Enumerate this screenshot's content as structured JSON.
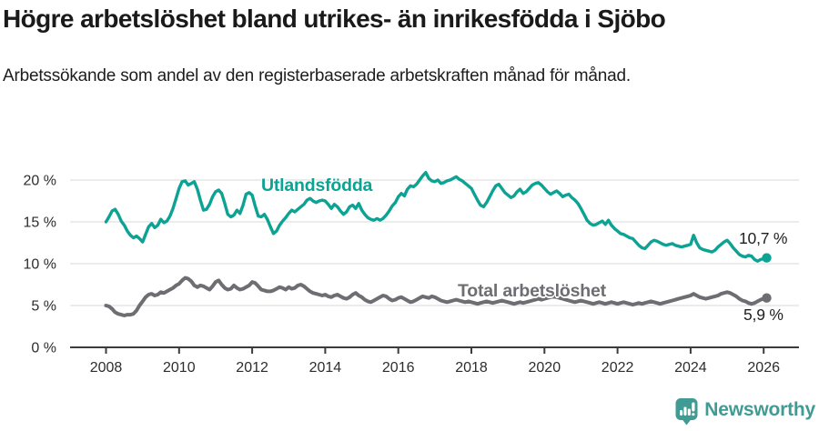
{
  "header": {
    "title": "Högre arbetslöshet bland utrikes- än inrikesfödda i Sjöbo",
    "subtitle": "Arbetssökande som andel av den registerbaserade arbetskraften månad för månad."
  },
  "chart_data": {
    "type": "line",
    "title": "Högre arbetslöshet bland utrikes- än inrikesfödda i Sjöbo",
    "subtitle": "Arbetssökande som andel av den registerbaserade arbetskraften månad för månad.",
    "unit": "%",
    "x": {
      "start": "2008-01",
      "end": "2026-02",
      "interval": "monthly"
    },
    "ylim": [
      0,
      22
    ],
    "grid": true,
    "grid_color": "#d9d9d9",
    "axis_color": "#3c3c3c",
    "y_ticks": [
      {
        "value": 0,
        "label": "0 %"
      },
      {
        "value": 5,
        "label": "5 %"
      },
      {
        "value": 10,
        "label": "10 %"
      },
      {
        "value": 15,
        "label": "15 %"
      },
      {
        "value": 20,
        "label": "20 %"
      }
    ],
    "x_ticks": [
      {
        "year": 2008,
        "label": "2008"
      },
      {
        "year": 2010,
        "label": "2010"
      },
      {
        "year": 2012,
        "label": "2012"
      },
      {
        "year": 2014,
        "label": "2014"
      },
      {
        "year": 2016,
        "label": "2016"
      },
      {
        "year": 2018,
        "label": "2018"
      },
      {
        "year": 2020,
        "label": "2020"
      },
      {
        "year": 2022,
        "label": "2022"
      },
      {
        "year": 2024,
        "label": "2024"
      },
      {
        "year": 2026,
        "label": "2026"
      }
    ],
    "series": [
      {
        "name": "Utlandsfödda",
        "color": "#0ca294",
        "end_label": "10,7 %",
        "end_value": 10.7,
        "values": [
          15.0,
          15.6,
          16.3,
          16.5,
          15.9,
          15.1,
          14.6,
          13.9,
          13.4,
          13.1,
          13.3,
          13.0,
          12.6,
          13.5,
          14.4,
          14.8,
          14.3,
          14.6,
          15.3,
          14.9,
          15.1,
          15.7,
          16.6,
          17.8,
          19.0,
          19.8,
          19.9,
          19.4,
          19.6,
          19.8,
          18.9,
          17.6,
          16.4,
          16.5,
          17.1,
          18.0,
          18.6,
          18.8,
          18.4,
          17.2,
          15.9,
          15.6,
          15.8,
          16.4,
          16.0,
          17.0,
          18.3,
          18.5,
          18.2,
          16.9,
          15.7,
          15.6,
          15.9,
          15.3,
          14.4,
          13.6,
          13.9,
          14.6,
          15.1,
          15.5,
          16.0,
          16.4,
          16.2,
          16.5,
          16.8,
          17.1,
          17.6,
          17.8,
          17.5,
          17.3,
          17.5,
          17.6,
          17.5,
          17.1,
          16.6,
          17.1,
          16.8,
          16.3,
          15.9,
          16.2,
          16.8,
          17.0,
          16.6,
          17.2,
          16.4,
          15.9,
          15.5,
          15.3,
          15.2,
          15.4,
          15.2,
          15.4,
          15.8,
          16.3,
          16.9,
          17.3,
          18.0,
          18.4,
          18.1,
          18.9,
          19.3,
          19.2,
          19.5,
          20.0,
          20.5,
          20.9,
          20.2,
          19.9,
          19.8,
          20.0,
          19.6,
          19.7,
          19.9,
          20.0,
          20.2,
          20.4,
          20.1,
          19.9,
          19.6,
          19.3,
          19.0,
          18.3,
          17.6,
          17.0,
          16.8,
          17.3,
          18.0,
          18.7,
          19.3,
          19.5,
          19.0,
          18.5,
          18.2,
          17.9,
          18.1,
          18.6,
          18.9,
          18.4,
          18.6,
          19.0,
          19.4,
          19.6,
          19.7,
          19.4,
          19.0,
          18.6,
          18.3,
          18.5,
          18.7,
          18.4,
          18.0,
          18.2,
          18.3,
          17.9,
          17.6,
          17.2,
          16.6,
          15.9,
          15.2,
          14.8,
          14.6,
          14.7,
          14.9,
          15.1,
          14.7,
          15.2,
          14.6,
          14.2,
          13.9,
          13.6,
          13.5,
          13.3,
          13.1,
          13.0,
          12.6,
          12.2,
          11.9,
          11.8,
          12.2,
          12.6,
          12.8,
          12.7,
          12.5,
          12.3,
          12.2,
          12.3,
          12.4,
          12.2,
          12.1,
          12.0,
          12.1,
          12.2,
          12.3,
          13.4,
          12.5,
          11.9,
          11.7,
          11.6,
          11.5,
          11.4,
          11.6,
          12.0,
          12.3,
          12.6,
          12.8,
          12.4,
          11.9,
          11.5,
          11.1,
          10.9,
          10.8,
          11.0,
          10.9,
          10.5,
          10.3,
          10.5,
          10.6,
          10.7
        ]
      },
      {
        "name": "Total arbetslöshet",
        "color": "#6d6d72",
        "end_label": "5,9 %",
        "end_value": 5.9,
        "values": [
          5.0,
          4.9,
          4.6,
          4.2,
          4.0,
          3.9,
          3.8,
          3.9,
          3.9,
          4.0,
          4.4,
          5.0,
          5.5,
          6.0,
          6.3,
          6.4,
          6.2,
          6.3,
          6.6,
          6.5,
          6.7,
          6.9,
          7.1,
          7.4,
          7.6,
          8.0,
          8.3,
          8.2,
          7.9,
          7.4,
          7.2,
          7.4,
          7.3,
          7.1,
          6.9,
          7.3,
          7.8,
          8.0,
          7.5,
          7.1,
          6.9,
          7.0,
          7.4,
          7.1,
          6.9,
          7.0,
          7.2,
          7.4,
          7.8,
          7.7,
          7.3,
          6.9,
          6.8,
          6.7,
          6.7,
          6.8,
          7.0,
          7.2,
          7.1,
          6.9,
          7.2,
          7.0,
          7.1,
          7.4,
          7.5,
          7.3,
          7.0,
          6.7,
          6.5,
          6.4,
          6.3,
          6.2,
          6.3,
          6.1,
          6.0,
          6.2,
          6.3,
          6.1,
          5.9,
          5.8,
          6.0,
          6.3,
          6.5,
          6.2,
          6.0,
          5.7,
          5.5,
          5.4,
          5.6,
          5.8,
          6.0,
          6.2,
          6.1,
          5.8,
          5.6,
          5.7,
          5.9,
          6.0,
          5.8,
          5.6,
          5.4,
          5.5,
          5.7,
          5.9,
          6.1,
          6.0,
          5.9,
          6.1,
          6.0,
          5.8,
          5.6,
          5.5,
          5.4,
          5.5,
          5.6,
          5.7,
          5.6,
          5.5,
          5.4,
          5.5,
          5.4,
          5.3,
          5.2,
          5.3,
          5.4,
          5.5,
          5.4,
          5.3,
          5.4,
          5.5,
          5.6,
          5.5,
          5.4,
          5.3,
          5.2,
          5.3,
          5.4,
          5.3,
          5.4,
          5.5,
          5.6,
          5.7,
          5.8,
          5.7,
          5.8,
          5.9,
          6.0,
          6.1,
          6.0,
          5.9,
          5.8,
          5.7,
          5.6,
          5.5,
          5.4,
          5.5,
          5.6,
          5.5,
          5.4,
          5.3,
          5.2,
          5.3,
          5.4,
          5.3,
          5.2,
          5.3,
          5.4,
          5.3,
          5.2,
          5.3,
          5.4,
          5.3,
          5.2,
          5.1,
          5.2,
          5.3,
          5.2,
          5.3,
          5.4,
          5.5,
          5.4,
          5.3,
          5.2,
          5.3,
          5.4,
          5.5,
          5.6,
          5.7,
          5.8,
          5.9,
          6.0,
          6.1,
          6.2,
          6.4,
          6.2,
          6.0,
          5.9,
          5.8,
          5.9,
          6.0,
          6.1,
          6.2,
          6.4,
          6.5,
          6.6,
          6.5,
          6.3,
          6.1,
          5.8,
          5.6,
          5.5,
          5.3,
          5.2,
          5.3,
          5.5,
          5.7,
          5.8,
          5.9
        ]
      }
    ],
    "legend_position": "inline-labels"
  },
  "footer": {
    "brand": "Newsworthy",
    "brand_color": "#3f9b93",
    "logo_icon": "bar-chart-speech-bubble-icon"
  }
}
